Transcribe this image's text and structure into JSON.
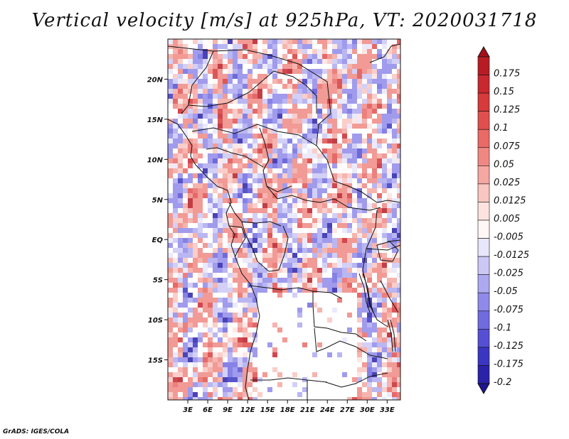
{
  "chart_data": {
    "type": "heatmap",
    "title": "Vertical velocity [m/s] at 925hPa, VT: 2020031718",
    "variable": "Vertical velocity",
    "units": "m/s",
    "level": "925hPa",
    "valid_time": "2020031718",
    "xlabel": "",
    "ylabel": "",
    "lon_range": [
      0,
      35
    ],
    "lat_range": [
      -20,
      25
    ],
    "x_ticks": [
      {
        "value": 3,
        "label": "3E"
      },
      {
        "value": 6,
        "label": "6E"
      },
      {
        "value": 9,
        "label": "9E"
      },
      {
        "value": 12,
        "label": "12E"
      },
      {
        "value": 15,
        "label": "15E"
      },
      {
        "value": 18,
        "label": "18E"
      },
      {
        "value": 21,
        "label": "21E"
      },
      {
        "value": 24,
        "label": "24E"
      },
      {
        "value": 27,
        "label": "27E"
      },
      {
        "value": 30,
        "label": "30E"
      },
      {
        "value": 33,
        "label": "33E"
      }
    ],
    "y_ticks": [
      {
        "value": 20,
        "label": "20N"
      },
      {
        "value": 15,
        "label": "15N"
      },
      {
        "value": 10,
        "label": "10N"
      },
      {
        "value": 5,
        "label": "5N"
      },
      {
        "value": 0,
        "label": "EQ"
      },
      {
        "value": -5,
        "label": "5S"
      },
      {
        "value": -10,
        "label": "10S"
      },
      {
        "value": -15,
        "label": "15S"
      }
    ],
    "colorbar": {
      "levels": [
        {
          "label": "0.175",
          "color": "#b71c24"
        },
        {
          "label": "0.15",
          "color": "#c8282e"
        },
        {
          "label": "0.125",
          "color": "#d63a3a"
        },
        {
          "label": "0.1",
          "color": "#e04f4d"
        },
        {
          "label": "0.075",
          "color": "#e96a66"
        },
        {
          "label": "0.05",
          "color": "#f08882"
        },
        {
          "label": "0.025",
          "color": "#f5a7a1"
        },
        {
          "label": "0.0125",
          "color": "#f9c6c1"
        },
        {
          "label": "0.005",
          "color": "#fde3e0"
        },
        {
          "label": "-0.005",
          "color": "#fff7f6"
        },
        {
          "label": "-0.0125",
          "color": "#e8e6fb"
        },
        {
          "label": "-0.025",
          "color": "#cbc8f6"
        },
        {
          "label": "-0.05",
          "color": "#ada9f0"
        },
        {
          "label": "-0.075",
          "color": "#8f8ae9"
        },
        {
          "label": "-0.1",
          "color": "#716be0"
        },
        {
          "label": "-0.125",
          "color": "#5550d3"
        },
        {
          "label": "-0.175",
          "color": "#3b36c1"
        },
        {
          "label": "-0.2",
          "color": "#2a22a8"
        }
      ],
      "top_arrow_color": "#a50f1a",
      "bottom_arrow_color": "#1e1690",
      "zero_color": "#ffffff"
    }
  },
  "footer": {
    "credit": "GrADS: IGES/COLA"
  }
}
